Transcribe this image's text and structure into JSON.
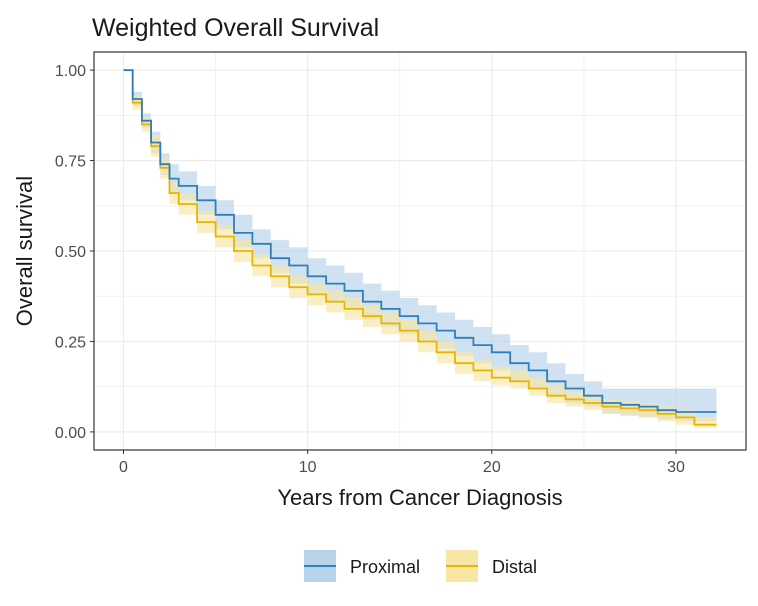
{
  "colors": {
    "proximal": "#2f7fbd",
    "proximal_band": "#b7d3ea",
    "distal": "#e6b600",
    "distal_band": "#f7e6a5",
    "grid": "#ebebeb",
    "panel_border": "#333333"
  },
  "chart_data": {
    "type": "line",
    "title": "Weighted Overall Survival",
    "xlabel": "Years from Cancer Diagnosis",
    "ylabel": "Overall survival",
    "xlim": [
      -1.6,
      33.8
    ],
    "ylim": [
      -0.05,
      1.05
    ],
    "xticks": [
      0,
      10,
      20,
      30
    ],
    "xtick_labels": [
      "0",
      "10",
      "20",
      "30"
    ],
    "yticks": [
      0,
      0.25,
      0.5,
      0.75,
      1.0
    ],
    "ytick_labels": [
      "0.00",
      "0.25",
      "0.50",
      "0.75",
      "1.00"
    ],
    "grid": true,
    "legend_position": "bottom",
    "series": [
      {
        "name": "Proximal",
        "color_key": "proximal",
        "band_key": "proximal_band",
        "x": [
          0,
          0.5,
          1,
          1.5,
          2,
          2.5,
          3,
          4,
          5,
          6,
          7,
          8,
          9,
          10,
          11,
          12,
          13,
          14,
          15,
          16,
          17,
          18,
          19,
          20,
          21,
          22,
          23,
          24,
          25,
          26,
          27,
          28,
          29,
          30,
          31,
          32.2
        ],
        "y": [
          1.0,
          0.92,
          0.86,
          0.8,
          0.74,
          0.7,
          0.68,
          0.64,
          0.6,
          0.55,
          0.52,
          0.48,
          0.46,
          0.43,
          0.41,
          0.39,
          0.36,
          0.34,
          0.32,
          0.3,
          0.28,
          0.26,
          0.24,
          0.22,
          0.19,
          0.17,
          0.14,
          0.12,
          0.1,
          0.08,
          0.075,
          0.07,
          0.06,
          0.055,
          0.055,
          0.055
        ],
        "lower": [
          1.0,
          0.9,
          0.84,
          0.77,
          0.71,
          0.66,
          0.64,
          0.6,
          0.56,
          0.51,
          0.48,
          0.44,
          0.41,
          0.38,
          0.36,
          0.34,
          0.31,
          0.29,
          0.27,
          0.25,
          0.23,
          0.21,
          0.19,
          0.17,
          0.14,
          0.12,
          0.1,
          0.08,
          0.07,
          0.05,
          0.045,
          0.04,
          0.035,
          0.03,
          0.03,
          0.03
        ],
        "upper": [
          1.0,
          0.94,
          0.88,
          0.83,
          0.77,
          0.74,
          0.72,
          0.68,
          0.64,
          0.6,
          0.56,
          0.53,
          0.51,
          0.48,
          0.46,
          0.44,
          0.41,
          0.39,
          0.37,
          0.35,
          0.33,
          0.31,
          0.29,
          0.27,
          0.24,
          0.22,
          0.19,
          0.16,
          0.14,
          0.12,
          0.12,
          0.12,
          0.12,
          0.12,
          0.12,
          0.12
        ]
      },
      {
        "name": "Distal",
        "color_key": "distal",
        "band_key": "distal_band",
        "x": [
          0,
          0.5,
          1,
          1.5,
          2,
          2.5,
          3,
          4,
          5,
          6,
          7,
          8,
          9,
          10,
          11,
          12,
          13,
          14,
          15,
          16,
          17,
          18,
          19,
          20,
          21,
          22,
          23,
          24,
          25,
          26,
          27,
          28,
          29,
          30,
          31,
          32.2
        ],
        "y": [
          1.0,
          0.91,
          0.85,
          0.79,
          0.73,
          0.66,
          0.63,
          0.58,
          0.54,
          0.5,
          0.46,
          0.43,
          0.4,
          0.38,
          0.36,
          0.34,
          0.32,
          0.3,
          0.28,
          0.25,
          0.22,
          0.19,
          0.17,
          0.15,
          0.14,
          0.12,
          0.1,
          0.09,
          0.08,
          0.07,
          0.065,
          0.06,
          0.05,
          0.04,
          0.02,
          0.02
        ],
        "lower": [
          1.0,
          0.89,
          0.83,
          0.76,
          0.7,
          0.63,
          0.6,
          0.55,
          0.51,
          0.47,
          0.43,
          0.4,
          0.37,
          0.35,
          0.33,
          0.31,
          0.29,
          0.27,
          0.25,
          0.22,
          0.19,
          0.16,
          0.14,
          0.13,
          0.12,
          0.1,
          0.08,
          0.07,
          0.06,
          0.05,
          0.045,
          0.04,
          0.03,
          0.02,
          0.01,
          0.01
        ],
        "upper": [
          1.0,
          0.93,
          0.87,
          0.82,
          0.76,
          0.69,
          0.66,
          0.61,
          0.57,
          0.53,
          0.49,
          0.46,
          0.43,
          0.41,
          0.39,
          0.37,
          0.35,
          0.33,
          0.31,
          0.28,
          0.25,
          0.22,
          0.2,
          0.18,
          0.17,
          0.15,
          0.13,
          0.11,
          0.1,
          0.09,
          0.085,
          0.08,
          0.07,
          0.06,
          0.04,
          0.04
        ]
      }
    ]
  }
}
